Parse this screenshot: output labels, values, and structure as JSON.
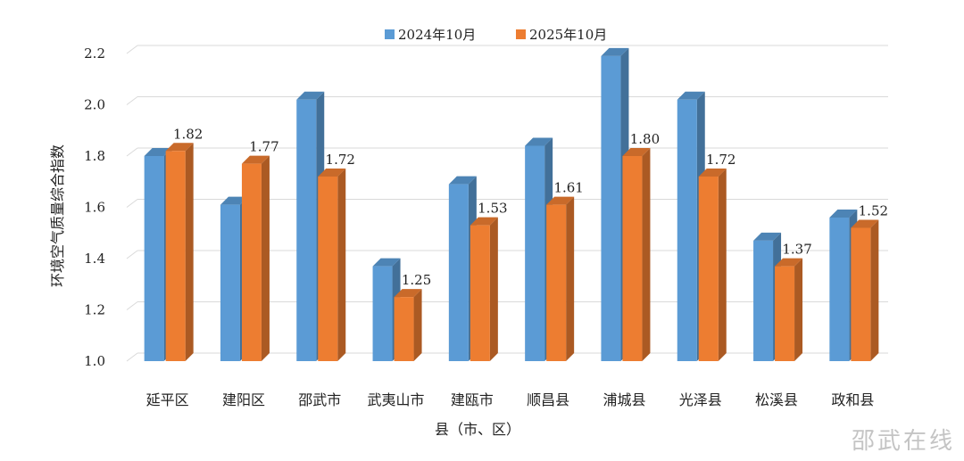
{
  "chart_data": {
    "type": "bar",
    "xlabel": "县（市、区）",
    "ylabel": "环境空气质量综合指数",
    "ylim": [
      1.0,
      2.2
    ],
    "yticks": [
      "1.0",
      "1.2",
      "1.4",
      "1.6",
      "1.8",
      "2.0",
      "2.2"
    ],
    "grid": true,
    "legend_position": "top",
    "categories": [
      "延平区",
      "建阳区",
      "邵武市",
      "武夷山市",
      "建瓯市",
      "顺昌县",
      "浦城县",
      "光泽县",
      "松溪县",
      "政和县"
    ],
    "series": [
      {
        "name": "2024年10月",
        "color": "#5b9bd5",
        "values": [
          1.8,
          1.61,
          2.02,
          1.37,
          1.69,
          1.84,
          2.19,
          2.02,
          1.47,
          1.56
        ],
        "labels": [
          "",
          "",
          "",
          "",
          "",
          "",
          "",
          "",
          "",
          ""
        ]
      },
      {
        "name": "2025年10月",
        "color": "#ed7d31",
        "values": [
          1.82,
          1.77,
          1.72,
          1.25,
          1.53,
          1.61,
          1.8,
          1.72,
          1.37,
          1.52
        ],
        "labels": [
          "1.82",
          "1.77",
          "1.72",
          "1.25",
          "1.53",
          "1.61",
          "1.80",
          "1.72",
          "1.37",
          "1.52"
        ]
      }
    ]
  },
  "watermark": "邵武在线"
}
